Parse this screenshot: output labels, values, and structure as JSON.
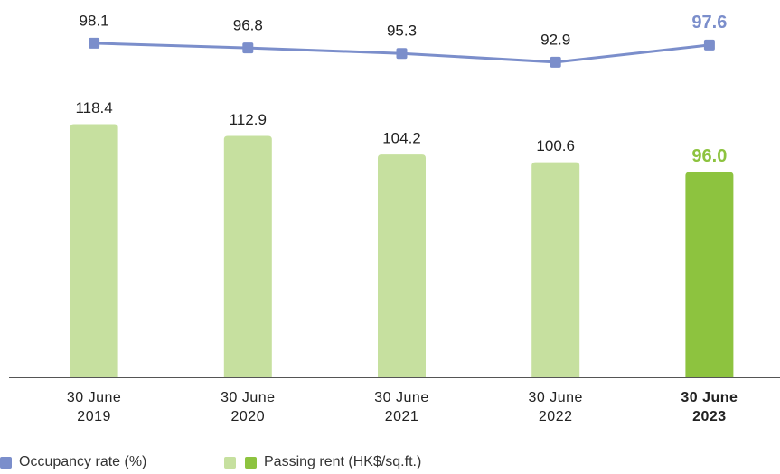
{
  "chart_data": {
    "type": "bar_line",
    "categories": [
      "30 June 2019",
      "30 June 2020",
      "30 June 2021",
      "30 June 2022",
      "30 June 2023"
    ],
    "emphasis_index": 4,
    "series": [
      {
        "name": "Passing rent (HK$/sq.ft.)",
        "type": "bar",
        "color": "#c6e09f",
        "emphasis_color": "#8dc33f",
        "values": [
          118.4,
          112.9,
          104.2,
          100.6,
          96.0
        ],
        "value_labels": [
          "118.4",
          "112.9",
          "104.2",
          "100.6",
          "96.0"
        ]
      },
      {
        "name": "Occupancy rate (%)",
        "type": "line",
        "axis": "y2",
        "color": "#7b8ecb",
        "emphasis_color": "#7b8ecb",
        "values": [
          98.1,
          96.8,
          95.3,
          92.9,
          97.6
        ]
      }
    ],
    "ylim": [
      0,
      168
    ],
    "y2lim": [
      6.5,
      105
    ]
  }
}
